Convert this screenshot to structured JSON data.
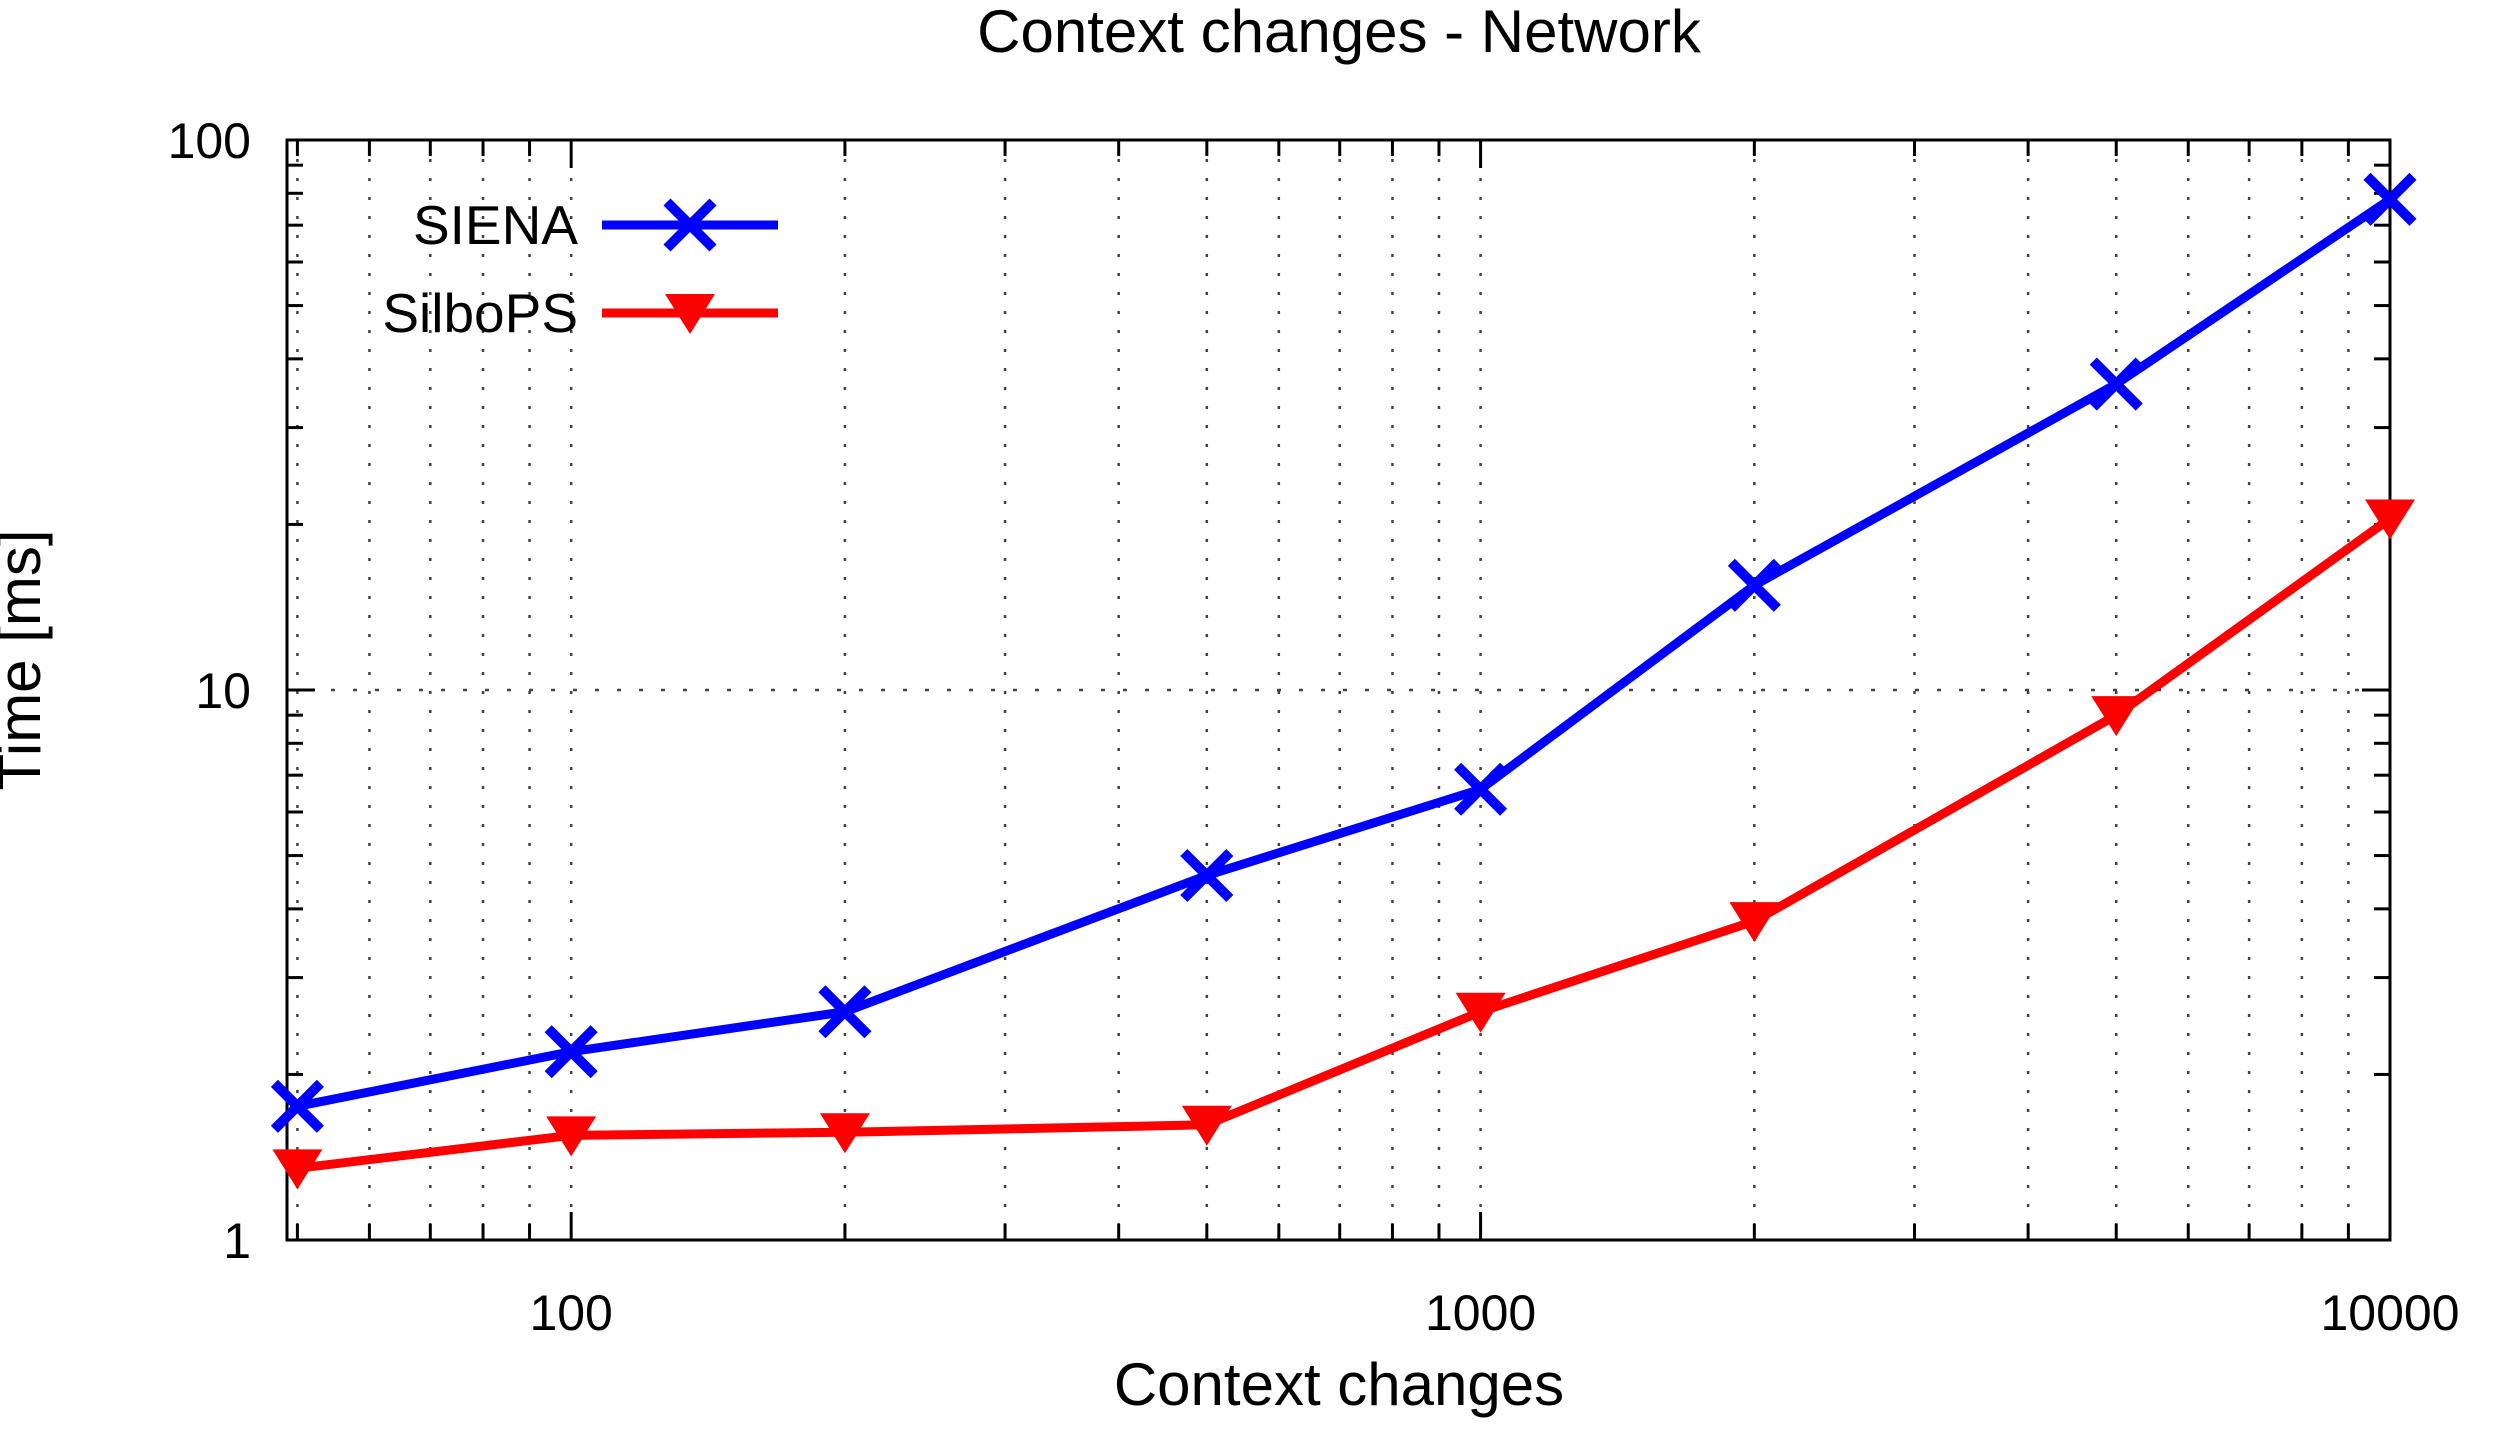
{
  "title": "Context changes - Network",
  "chart_data": {
    "type": "line",
    "title": "Context changes - Network",
    "xlabel": "Context changes",
    "ylabel": "Time [ms]",
    "x_scale": "log",
    "y_scale": "log",
    "xlim": [
      48.7,
      10000
    ],
    "ylim": [
      1,
      100
    ],
    "grid": true,
    "legend_position": "top-left-inside",
    "x": [
      50,
      100,
      200,
      500,
      1000,
      2000,
      5000,
      10000
    ],
    "x_major_ticks": [
      100,
      1000,
      10000
    ],
    "x_tick_labels": [
      "100",
      "1000",
      "10000"
    ],
    "y_major_ticks": [
      1,
      10,
      100
    ],
    "y_tick_labels": [
      "1",
      "10",
      "100"
    ],
    "series": [
      {
        "name": "SIENA",
        "color": "#0000ff",
        "marker": "x-cross",
        "values": [
          1.75,
          2.2,
          2.6,
          4.6,
          6.6,
          15.5,
          36,
          78
        ]
      },
      {
        "name": "SilboPS",
        "color": "#ff0000",
        "marker": "triangle-down",
        "values": [
          1.35,
          1.55,
          1.57,
          1.62,
          2.6,
          3.8,
          9.0,
          20.5
        ]
      }
    ]
  },
  "colors": {
    "background": "#ffffff",
    "axis": "#000000",
    "grid": "#222222",
    "text": "#000000",
    "siena": "#0000ff",
    "silbops": "#ff0000"
  }
}
